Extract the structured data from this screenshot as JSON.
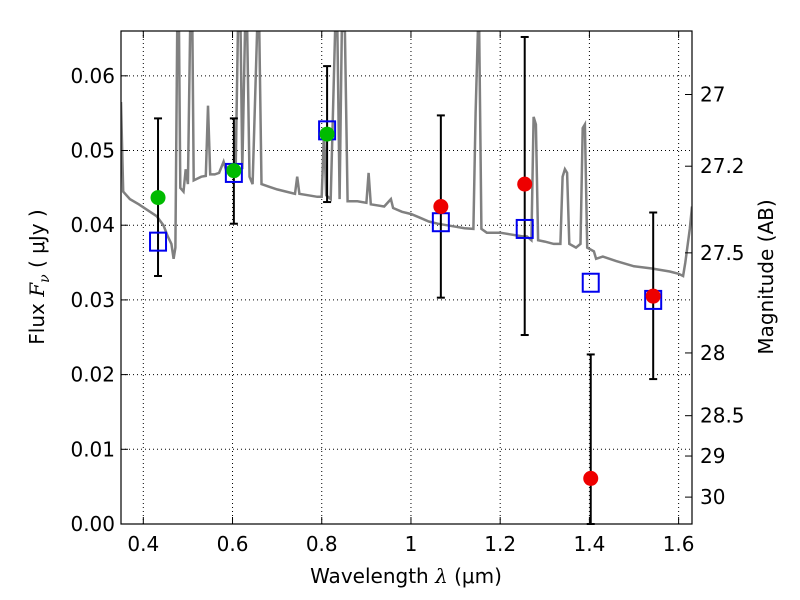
{
  "chart_data": {
    "type": "scatter",
    "xlabel": {
      "prefix": "Wavelength ",
      "symbol": "λ",
      "unit": " (μm)"
    },
    "ylabel": {
      "prefix": "Flux ",
      "symbol": "F",
      "subscript": "ν",
      "unit": " ( μJy )"
    },
    "y2label": "Magnitude (AB)",
    "xlim": [
      0.35,
      1.63
    ],
    "ylim": [
      0.0,
      0.066
    ],
    "x_ticks": [
      0.4,
      0.6,
      0.8,
      1.0,
      1.2,
      1.4,
      1.6
    ],
    "x_tick_labels": [
      "0.4",
      "0.6",
      "0.8",
      "1",
      "1.2",
      "1.4",
      "1.6"
    ],
    "y_ticks": [
      0.0,
      0.01,
      0.02,
      0.03,
      0.04,
      0.05,
      0.06
    ],
    "y_tick_labels": [
      "0.00",
      "0.01",
      "0.02",
      "0.03",
      "0.04",
      "0.05",
      "0.06"
    ],
    "y2_ticks": [
      {
        "label": "27",
        "flux": 0.0575
      },
      {
        "label": "27.2",
        "flux": 0.0479
      },
      {
        "label": "27.5",
        "flux": 0.0363
      },
      {
        "label": "28",
        "flux": 0.0229
      },
      {
        "label": "28.5",
        "flux": 0.0145
      },
      {
        "label": "29",
        "flux": 0.0091
      },
      {
        "label": "30",
        "flux": 0.0036
      }
    ],
    "grid": true,
    "colors": {
      "model": "#808080",
      "observed_green": "#00bb00",
      "observed_red": "#ee0000",
      "model_box": "#0000ee",
      "error": "#000000"
    },
    "series": [
      {
        "kind": "model_spectrum",
        "points": [
          [
            0.35,
            0.0565
          ],
          [
            0.355,
            0.0445
          ],
          [
            0.37,
            0.0435
          ],
          [
            0.39,
            0.0428
          ],
          [
            0.41,
            0.042
          ],
          [
            0.43,
            0.0412
          ],
          [
            0.445,
            0.04
          ],
          [
            0.455,
            0.0385
          ],
          [
            0.463,
            0.0375
          ],
          [
            0.468,
            0.0355
          ],
          [
            0.472,
            0.037
          ],
          [
            0.476,
            0.066
          ],
          [
            0.48,
            0.066
          ],
          [
            0.483,
            0.045
          ],
          [
            0.49,
            0.0445
          ],
          [
            0.495,
            0.0475
          ],
          [
            0.5,
            0.0455
          ],
          [
            0.505,
            0.066
          ],
          [
            0.51,
            0.066
          ],
          [
            0.513,
            0.046
          ],
          [
            0.52,
            0.0462
          ],
          [
            0.53,
            0.0465
          ],
          [
            0.54,
            0.0466
          ],
          [
            0.545,
            0.056
          ],
          [
            0.55,
            0.0468
          ],
          [
            0.56,
            0.0468
          ],
          [
            0.57,
            0.047
          ],
          [
            0.58,
            0.0485
          ],
          [
            0.585,
            0.0475
          ],
          [
            0.59,
            0.0478
          ],
          [
            0.6,
            0.0474
          ],
          [
            0.607,
            0.0468
          ],
          [
            0.612,
            0.066
          ],
          [
            0.618,
            0.066
          ],
          [
            0.622,
            0.0475
          ],
          [
            0.628,
            0.066
          ],
          [
            0.633,
            0.066
          ],
          [
            0.638,
            0.0465
          ],
          [
            0.645,
            0.0455
          ],
          [
            0.655,
            0.066
          ],
          [
            0.66,
            0.066
          ],
          [
            0.665,
            0.0455
          ],
          [
            0.68,
            0.0452
          ],
          [
            0.7,
            0.0448
          ],
          [
            0.72,
            0.0445
          ],
          [
            0.74,
            0.0442
          ],
          [
            0.745,
            0.0465
          ],
          [
            0.75,
            0.0442
          ],
          [
            0.77,
            0.044
          ],
          [
            0.79,
            0.0438
          ],
          [
            0.8,
            0.0438
          ],
          [
            0.805,
            0.0525
          ],
          [
            0.81,
            0.044
          ],
          [
            0.82,
            0.0435
          ],
          [
            0.83,
            0.066
          ],
          [
            0.835,
            0.066
          ],
          [
            0.84,
            0.0435
          ],
          [
            0.845,
            0.066
          ],
          [
            0.852,
            0.066
          ],
          [
            0.858,
            0.0432
          ],
          [
            0.88,
            0.0432
          ],
          [
            0.9,
            0.043
          ],
          [
            0.905,
            0.047
          ],
          [
            0.91,
            0.0428
          ],
          [
            0.94,
            0.0425
          ],
          [
            0.955,
            0.0435
          ],
          [
            0.96,
            0.0423
          ],
          [
            0.98,
            0.0418
          ],
          [
            1.0,
            0.0415
          ],
          [
            1.02,
            0.041
          ],
          [
            1.04,
            0.0405
          ],
          [
            1.06,
            0.0402
          ],
          [
            1.08,
            0.04
          ],
          [
            1.1,
            0.0398
          ],
          [
            1.12,
            0.0396
          ],
          [
            1.14,
            0.0395
          ],
          [
            1.145,
            0.055
          ],
          [
            1.15,
            0.066
          ],
          [
            1.153,
            0.066
          ],
          [
            1.158,
            0.0395
          ],
          [
            1.17,
            0.039
          ],
          [
            1.2,
            0.039
          ],
          [
            1.22,
            0.0388
          ],
          [
            1.25,
            0.0385
          ],
          [
            1.26,
            0.0385
          ],
          [
            1.27,
            0.038
          ],
          [
            1.275,
            0.0545
          ],
          [
            1.28,
            0.0535
          ],
          [
            1.285,
            0.038
          ],
          [
            1.3,
            0.0378
          ],
          [
            1.32,
            0.0375
          ],
          [
            1.335,
            0.0375
          ],
          [
            1.34,
            0.0465
          ],
          [
            1.345,
            0.0475
          ],
          [
            1.35,
            0.047
          ],
          [
            1.355,
            0.0375
          ],
          [
            1.37,
            0.037
          ],
          [
            1.38,
            0.0375
          ],
          [
            1.385,
            0.053
          ],
          [
            1.39,
            0.0535
          ],
          [
            1.395,
            0.037
          ],
          [
            1.41,
            0.0365
          ],
          [
            1.415,
            0.0355
          ],
          [
            1.43,
            0.0358
          ],
          [
            1.46,
            0.0352
          ],
          [
            1.5,
            0.0345
          ],
          [
            1.54,
            0.0342
          ],
          [
            1.58,
            0.0338
          ],
          [
            1.6,
            0.0335
          ],
          [
            1.61,
            0.0332
          ],
          [
            1.615,
            0.035
          ],
          [
            1.62,
            0.0372
          ],
          [
            1.625,
            0.0395
          ],
          [
            1.63,
            0.0425
          ]
        ]
      },
      {
        "kind": "observed",
        "points": [
          {
            "x": 0.433,
            "y": 0.0437,
            "err_lo": 0.0332,
            "err_hi": 0.0543,
            "color": "green"
          },
          {
            "x": 0.603,
            "y": 0.0473,
            "err_lo": 0.0402,
            "err_hi": 0.0543,
            "color": "green"
          },
          {
            "x": 0.812,
            "y": 0.0522,
            "err_lo": 0.0431,
            "err_hi": 0.0613,
            "color": "green"
          },
          {
            "x": 1.067,
            "y": 0.0425,
            "err_lo": 0.0303,
            "err_hi": 0.0547,
            "color": "red"
          },
          {
            "x": 1.255,
            "y": 0.0455,
            "err_lo": 0.0253,
            "err_hi": 0.0652,
            "color": "red"
          },
          {
            "x": 1.403,
            "y": 0.0061,
            "err_lo": 0.0,
            "err_hi": 0.0227,
            "color": "red"
          },
          {
            "x": 1.543,
            "y": 0.0305,
            "err_lo": 0.0194,
            "err_hi": 0.0417,
            "color": "red"
          }
        ]
      },
      {
        "kind": "model_bandflux",
        "points": [
          {
            "x": 0.433,
            "y": 0.0378
          },
          {
            "x": 0.603,
            "y": 0.047
          },
          {
            "x": 0.812,
            "y": 0.0527
          },
          {
            "x": 1.067,
            "y": 0.0404
          },
          {
            "x": 1.255,
            "y": 0.0395
          },
          {
            "x": 1.403,
            "y": 0.0323
          },
          {
            "x": 1.543,
            "y": 0.03
          }
        ]
      }
    ]
  }
}
